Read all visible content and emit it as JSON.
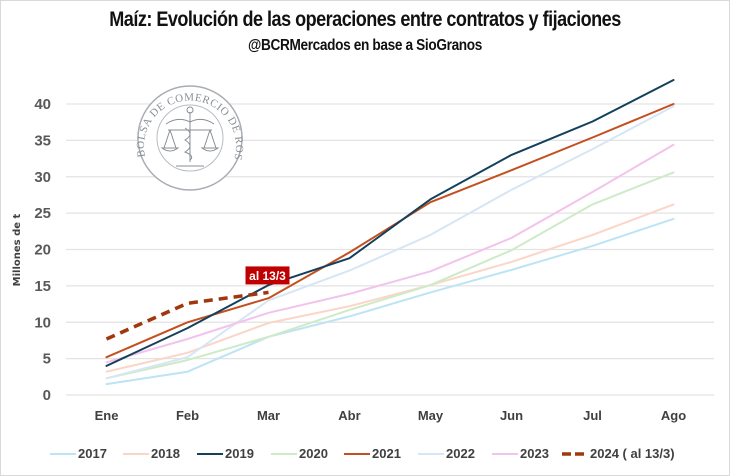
{
  "header": {
    "title": "Maíz: Evolución de las operaciones entre contratos y fijaciones",
    "subtitle": "@BCRMercados en base a SioGranos"
  },
  "logo": {
    "text": "BOLSA DE COMERCIO DE ROSARIO"
  },
  "chart_data": {
    "type": "line",
    "title": "Maíz: Evolución de las operaciones entre contratos y fijaciones",
    "subtitle": "@BCRMercados en base a SioGranos",
    "xlabel": "",
    "ylabel": "Millones de t",
    "categories": [
      "Ene",
      "Feb",
      "Mar",
      "Abr",
      "May",
      "Jun",
      "Jul",
      "Ago"
    ],
    "ylim": [
      0,
      40
    ],
    "yticks": [
      0,
      5,
      10,
      15,
      20,
      25,
      30,
      35,
      40
    ],
    "grid": true,
    "legend_position": "bottom",
    "series": [
      {
        "name": "2017",
        "color": "#BDE4F4",
        "dashed": false,
        "values": [
          1.5,
          3.2,
          8.0,
          10.8,
          14.1,
          17.2,
          20.5,
          24.2
        ]
      },
      {
        "name": "2018",
        "color": "#FBD5C6",
        "dashed": false,
        "values": [
          3.2,
          5.8,
          9.9,
          12.2,
          15.1,
          18.3,
          22.0,
          26.2
        ]
      },
      {
        "name": "2019",
        "color": "#13415C",
        "dashed": false,
        "values": [
          4.0,
          9.2,
          15.1,
          18.8,
          26.9,
          33.0,
          37.6,
          43.3
        ]
      },
      {
        "name": "2020",
        "color": "#CDEBC6",
        "dashed": false,
        "values": [
          2.3,
          4.8,
          8.0,
          11.7,
          15.1,
          19.9,
          26.2,
          30.6
        ]
      },
      {
        "name": "2021",
        "color": "#C4501F",
        "dashed": false,
        "values": [
          5.2,
          10.0,
          13.3,
          19.6,
          26.5,
          30.9,
          35.4,
          40.0
        ]
      },
      {
        "name": "2022",
        "color": "#D7E6F5",
        "dashed": false,
        "values": [
          2.3,
          5.2,
          13.0,
          17.1,
          22.0,
          28.2,
          33.8,
          39.7
        ]
      },
      {
        "name": "2023",
        "color": "#F2C3EC",
        "dashed": false,
        "values": [
          4.5,
          7.7,
          11.3,
          13.9,
          17.0,
          21.6,
          27.9,
          34.4
        ]
      },
      {
        "name": "2024 ( al 13/3)",
        "color": "#A0380E",
        "dashed": true,
        "values": [
          7.7,
          12.6,
          14.1,
          null,
          null,
          null,
          null,
          null
        ]
      }
    ],
    "annotations": [
      {
        "text": "al 13/3",
        "category": "Mar",
        "value": 14.1,
        "color": "#C00000"
      }
    ]
  }
}
